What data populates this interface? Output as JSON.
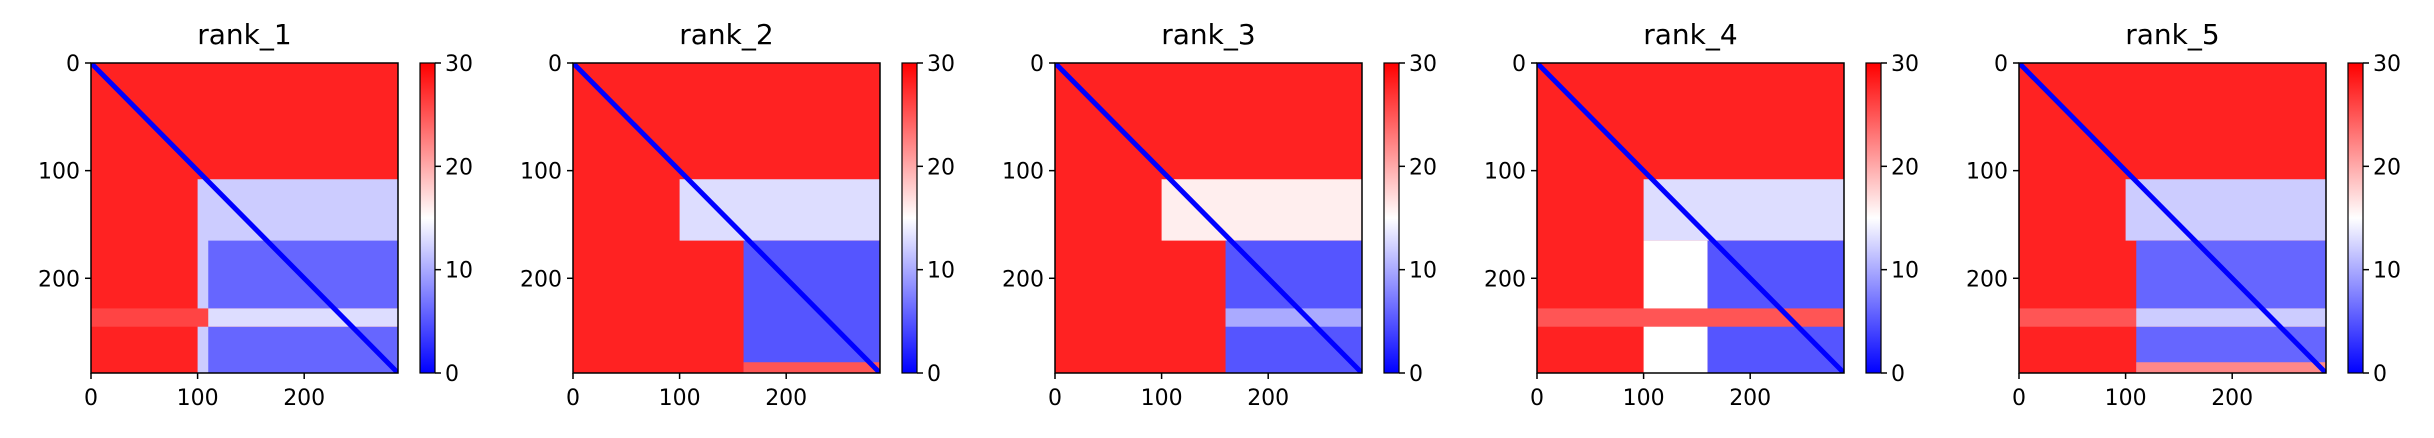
{
  "colors": {
    "low": "#0000ff",
    "mid": "#ffffff",
    "high": "#ff0000",
    "axis": "#000000"
  },
  "chart_data": [
    {
      "type": "heatmap",
      "title": "rank_1",
      "n": 288,
      "xticks": [
        0,
        100,
        200
      ],
      "yticks": [
        0,
        100,
        200
      ],
      "xlim": [
        0,
        288
      ],
      "ylim": [
        288,
        0
      ],
      "colorbar": {
        "min": 0,
        "max": 30,
        "ticks": [
          0,
          10,
          20,
          30
        ],
        "colormap": "bwr"
      },
      "regions": [
        {
          "rows": [
            0,
            288
          ],
          "cols": [
            0,
            288
          ],
          "value": 28
        },
        {
          "rows": [
            108,
            288
          ],
          "cols": [
            100,
            288
          ],
          "value": 12
        },
        {
          "rows": [
            165,
            288
          ],
          "cols": [
            110,
            288
          ],
          "value": 6
        },
        {
          "rows": [
            228,
            245
          ],
          "cols": [
            0,
            288
          ],
          "value": 26
        },
        {
          "rows": [
            228,
            245
          ],
          "cols": [
            110,
            288
          ],
          "value": 13
        }
      ]
    },
    {
      "type": "heatmap",
      "title": "rank_2",
      "n": 288,
      "xticks": [
        0,
        100,
        200
      ],
      "yticks": [
        0,
        100,
        200
      ],
      "xlim": [
        0,
        288
      ],
      "ylim": [
        288,
        0
      ],
      "colorbar": {
        "min": 0,
        "max": 30,
        "ticks": [
          0,
          10,
          20,
          30
        ],
        "colormap": "bwr"
      },
      "regions": [
        {
          "rows": [
            0,
            288
          ],
          "cols": [
            0,
            288
          ],
          "value": 28
        },
        {
          "rows": [
            108,
            165
          ],
          "cols": [
            100,
            288
          ],
          "value": 13
        },
        {
          "rows": [
            165,
            288
          ],
          "cols": [
            160,
            288
          ],
          "value": 5
        },
        {
          "rows": [
            278,
            288
          ],
          "cols": [
            160,
            288
          ],
          "value": 25
        }
      ]
    },
    {
      "type": "heatmap",
      "title": "rank_3",
      "n": 288,
      "xticks": [
        0,
        100,
        200
      ],
      "yticks": [
        0,
        100,
        200
      ],
      "xlim": [
        0,
        288
      ],
      "ylim": [
        288,
        0
      ],
      "colorbar": {
        "min": 0,
        "max": 30,
        "ticks": [
          0,
          10,
          20,
          30
        ],
        "colormap": "bwr"
      },
      "regions": [
        {
          "rows": [
            0,
            288
          ],
          "cols": [
            0,
            288
          ],
          "value": 28
        },
        {
          "rows": [
            108,
            165
          ],
          "cols": [
            100,
            288
          ],
          "value": 16
        },
        {
          "rows": [
            165,
            288
          ],
          "cols": [
            160,
            288
          ],
          "value": 5
        },
        {
          "rows": [
            228,
            245
          ],
          "cols": [
            160,
            288
          ],
          "value": 10
        }
      ]
    },
    {
      "type": "heatmap",
      "title": "rank_4",
      "n": 288,
      "xticks": [
        0,
        100,
        200
      ],
      "yticks": [
        0,
        100,
        200
      ],
      "xlim": [
        0,
        288
      ],
      "ylim": [
        288,
        0
      ],
      "colorbar": {
        "min": 0,
        "max": 30,
        "ticks": [
          0,
          10,
          20,
          30
        ],
        "colormap": "bwr"
      },
      "regions": [
        {
          "rows": [
            0,
            288
          ],
          "cols": [
            0,
            288
          ],
          "value": 28
        },
        {
          "rows": [
            108,
            165
          ],
          "cols": [
            100,
            288
          ],
          "value": 13
        },
        {
          "rows": [
            165,
            288
          ],
          "cols": [
            100,
            160
          ],
          "value": 15
        },
        {
          "rows": [
            165,
            288
          ],
          "cols": [
            160,
            288
          ],
          "value": 5
        },
        {
          "rows": [
            228,
            245
          ],
          "cols": [
            0,
            288
          ],
          "value": 25
        }
      ]
    },
    {
      "type": "heatmap",
      "title": "rank_5",
      "n": 288,
      "xticks": [
        0,
        100,
        200
      ],
      "yticks": [
        0,
        100,
        200
      ],
      "xlim": [
        0,
        288
      ],
      "ylim": [
        288,
        0
      ],
      "colorbar": {
        "min": 0,
        "max": 30,
        "ticks": [
          0,
          10,
          20,
          30
        ],
        "colormap": "bwr"
      },
      "regions": [
        {
          "rows": [
            0,
            288
          ],
          "cols": [
            0,
            288
          ],
          "value": 28
        },
        {
          "rows": [
            108,
            165
          ],
          "cols": [
            100,
            288
          ],
          "value": 12
        },
        {
          "rows": [
            165,
            288
          ],
          "cols": [
            110,
            288
          ],
          "value": 6
        },
        {
          "rows": [
            228,
            245
          ],
          "cols": [
            0,
            288
          ],
          "value": 25
        },
        {
          "rows": [
            228,
            245
          ],
          "cols": [
            110,
            288
          ],
          "value": 12
        },
        {
          "rows": [
            278,
            288
          ],
          "cols": [
            110,
            288
          ],
          "value": 22
        }
      ]
    }
  ]
}
